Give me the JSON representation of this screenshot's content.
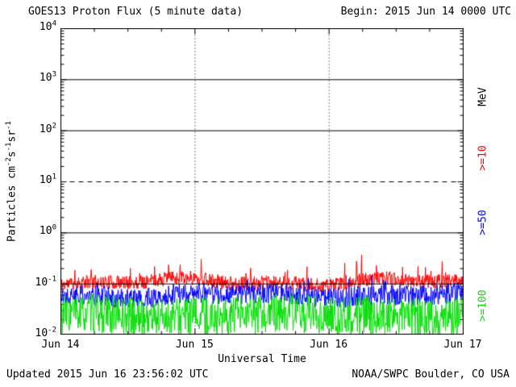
{
  "header": {
    "title": "GOES13 Proton Flux (5 minute data)",
    "begin": "Begin: 2015 Jun 14 0000 UTC"
  },
  "footer": {
    "updated": "Updated 2015 Jun 16 23:56:02 UTC",
    "credit": "NOAA/SWPC Boulder, CO USA"
  },
  "chart_data": {
    "type": "line",
    "title": "GOES13 Proton Flux (5 minute data)",
    "xlabel": "Universal Time",
    "ylabel_parts": [
      {
        "text": "Particles cm"
      },
      {
        "sup": "-2"
      },
      {
        "text": "s"
      },
      {
        "sup": "-1"
      },
      {
        "text": "sr"
      },
      {
        "sup": "-1"
      }
    ],
    "x_ticks": [
      "Jun 14",
      "Jun 15",
      "Jun 16",
      "Jun 17"
    ],
    "x_start": "2015 Jun 14 0000 UTC",
    "x_range_hours": 72,
    "samples_per_series": 864,
    "ylim_log10": [
      -2,
      4
    ],
    "y_tick_exponents": [
      4,
      3,
      2,
      1,
      0,
      -1,
      -2
    ],
    "grid": {
      "solid_exponents": [
        3,
        2,
        0
      ],
      "dashed_exponents": [
        1
      ],
      "overlay_solid_exponents": [
        -1
      ],
      "vertical_dotted_hours": [
        24,
        48
      ]
    },
    "unit_label": "MeV",
    "series": [
      {
        "label": ">=10",
        "name": ">=10 MeV",
        "color": "#ff0000",
        "base_log10": -0.96,
        "noise_log10": 0.14,
        "tail_prob": 0.05,
        "tail_log10": 0.4,
        "wander_log10": 0.05,
        "approx_flux_range": [
          0.07,
          0.45
        ],
        "seed": 11
      },
      {
        "label": ">=50",
        "name": ">=50 MeV",
        "color": "#0000ff",
        "base_log10": -1.22,
        "noise_log10": 0.2,
        "tail_prob": 0.04,
        "tail_log10": 0.25,
        "wander_log10": 0.04,
        "approx_flux_range": [
          0.03,
          0.12
        ],
        "seed": 22
      },
      {
        "label": ">=100",
        "name": ">=100 MeV",
        "color": "#00dd00",
        "base_log10": -1.62,
        "noise_log10": 0.38,
        "tail_prob": 0.0,
        "tail_log10": 0.0,
        "wander_log10": 0.03,
        "approx_flux_range": [
          0.01,
          0.06
        ],
        "seed": 33
      }
    ]
  }
}
